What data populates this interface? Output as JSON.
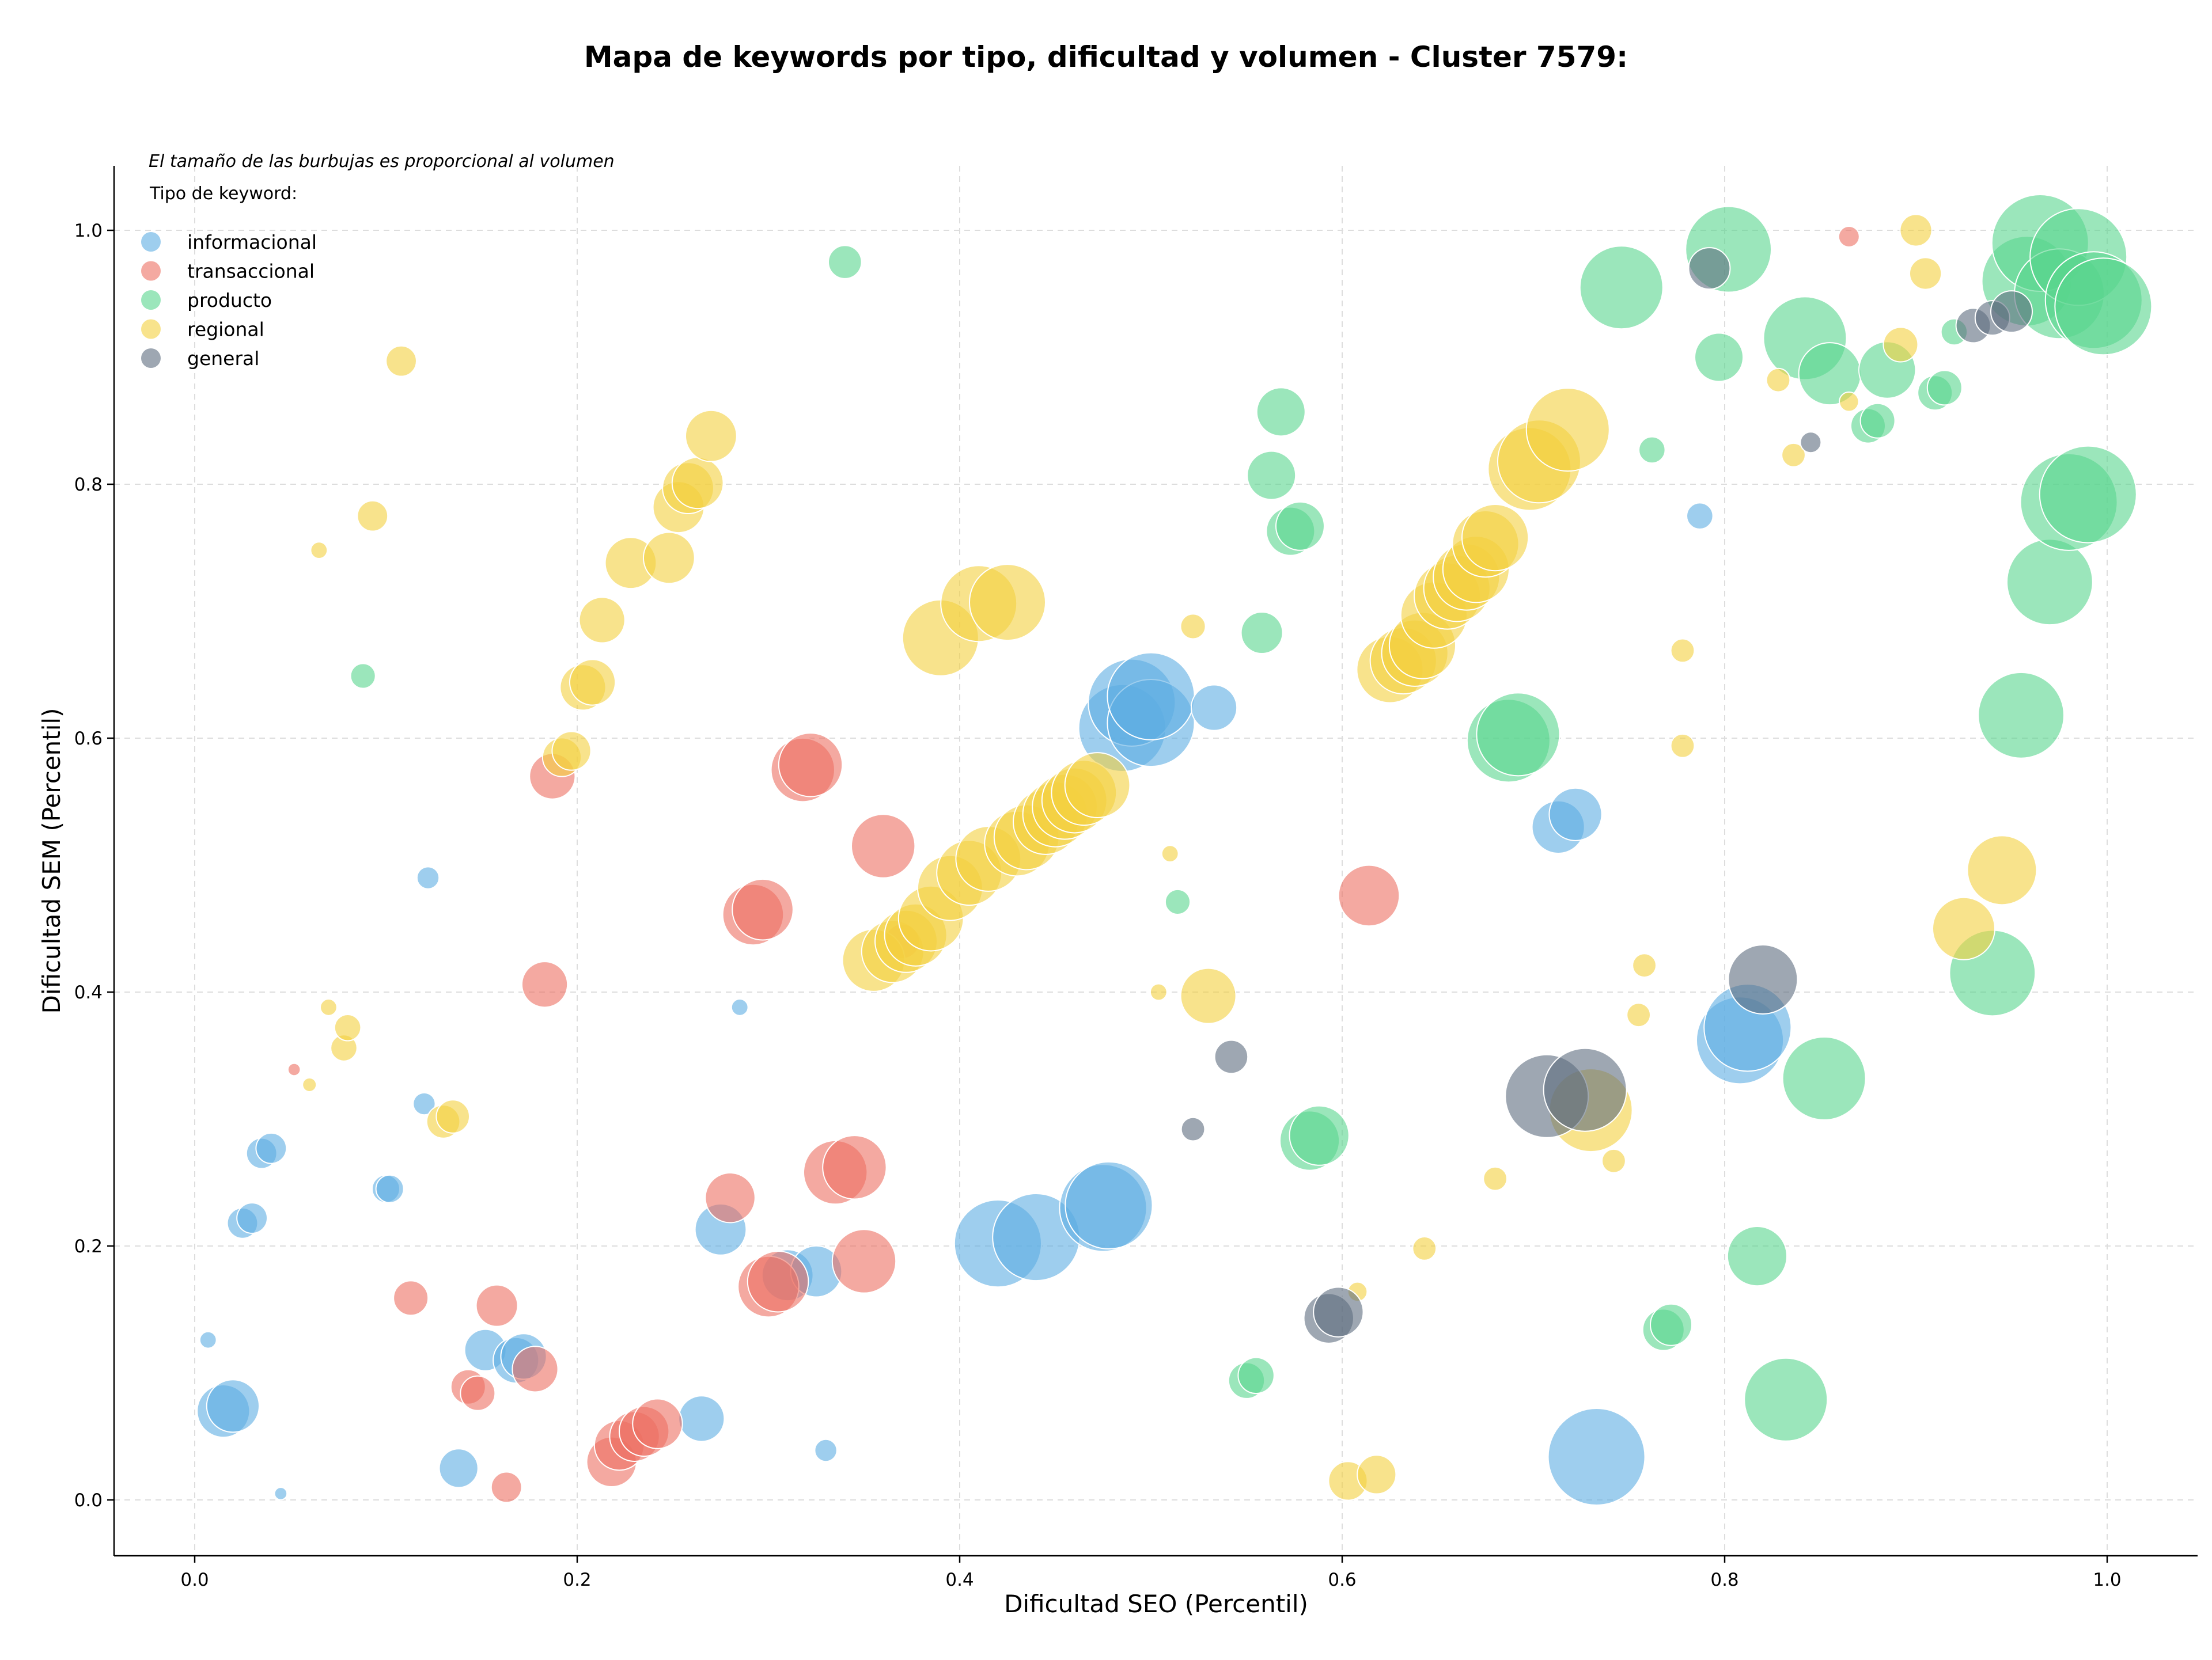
{
  "chart_data": {
    "type": "scatter",
    "title": "Mapa de keywords por tipo, dificultad y volumen - Cluster 7579:",
    "xlabel": "Dificultad SEO (Percentil)",
    "ylabel": "Dificultad SEM (Percentil)",
    "xlim": [
      -0.04,
      1.05
    ],
    "ylim": [
      -0.045,
      1.05
    ],
    "x_ticks": [
      "0.0",
      "0.2",
      "0.4",
      "0.6",
      "0.8",
      "1.0"
    ],
    "y_ticks": [
      "0.0",
      "0.2",
      "0.4",
      "0.6",
      "0.8",
      "1.0"
    ],
    "grid": true,
    "legend_position": "top-left",
    "size_note": "El tamaño de las burbujas es proporcional al volumen",
    "legend_title": "Tipo de keyword:",
    "series": [
      {
        "name": "informacional",
        "color": "#5dade2",
        "points": [
          [
            0.007,
            0.126,
            1.2
          ],
          [
            0.015,
            0.07,
            3.8
          ],
          [
            0.02,
            0.074,
            3.8
          ],
          [
            0.025,
            0.218,
            2.2
          ],
          [
            0.03,
            0.222,
            2.2
          ],
          [
            0.035,
            0.273,
            2.2
          ],
          [
            0.04,
            0.277,
            2.2
          ],
          [
            0.045,
            0.005,
            0.9
          ],
          [
            0.1,
            0.245,
            2.0
          ],
          [
            0.102,
            0.245,
            2.0
          ],
          [
            0.12,
            0.312,
            1.6
          ],
          [
            0.122,
            0.49,
            1.6
          ],
          [
            0.138,
            0.025,
            2.8
          ],
          [
            0.152,
            0.118,
            3.0
          ],
          [
            0.168,
            0.11,
            3.3
          ],
          [
            0.172,
            0.113,
            3.3
          ],
          [
            0.265,
            0.064,
            3.3
          ],
          [
            0.275,
            0.213,
            3.7
          ],
          [
            0.285,
            0.388,
            1.2
          ],
          [
            0.31,
            0.177,
            3.7
          ],
          [
            0.325,
            0.18,
            3.7
          ],
          [
            0.33,
            0.039,
            1.6
          ],
          [
            0.42,
            0.202,
            6.3
          ],
          [
            0.44,
            0.207,
            6.3
          ],
          [
            0.475,
            0.23,
            6.3
          ],
          [
            0.478,
            0.232,
            6.3
          ],
          [
            0.485,
            0.608,
            6.3
          ],
          [
            0.49,
            0.628,
            6.3
          ],
          [
            0.5,
            0.612,
            6.3
          ],
          [
            0.5,
            0.633,
            6.3
          ],
          [
            0.533,
            0.624,
            3.3
          ],
          [
            0.713,
            0.53,
            3.8
          ],
          [
            0.722,
            0.54,
            3.8
          ],
          [
            0.733,
            0.034,
            7.0
          ],
          [
            0.787,
            0.775,
            1.9
          ],
          [
            0.808,
            0.362,
            6.3
          ],
          [
            0.812,
            0.372,
            6.3
          ]
        ]
      },
      {
        "name": "transaccional",
        "color": "#ec7063",
        "points": [
          [
            0.052,
            0.339,
            0.9
          ],
          [
            0.113,
            0.159,
            2.5
          ],
          [
            0.143,
            0.089,
            2.5
          ],
          [
            0.148,
            0.084,
            2.5
          ],
          [
            0.158,
            0.153,
            3.0
          ],
          [
            0.163,
            0.01,
            2.2
          ],
          [
            0.178,
            0.103,
            3.3
          ],
          [
            0.183,
            0.406,
            3.3
          ],
          [
            0.187,
            0.57,
            3.3
          ],
          [
            0.218,
            0.03,
            3.6
          ],
          [
            0.222,
            0.043,
            3.6
          ],
          [
            0.23,
            0.05,
            3.6
          ],
          [
            0.235,
            0.054,
            3.6
          ],
          [
            0.242,
            0.06,
            3.6
          ],
          [
            0.28,
            0.238,
            3.6
          ],
          [
            0.292,
            0.461,
            4.4
          ],
          [
            0.297,
            0.465,
            4.4
          ],
          [
            0.3,
            0.168,
            4.4
          ],
          [
            0.305,
            0.172,
            4.4
          ],
          [
            0.318,
            0.575,
            4.6
          ],
          [
            0.322,
            0.579,
            4.6
          ],
          [
            0.335,
            0.258,
            4.6
          ],
          [
            0.345,
            0.262,
            4.6
          ],
          [
            0.35,
            0.188,
            4.6
          ],
          [
            0.36,
            0.515,
            4.6
          ],
          [
            0.37,
            0.44,
            2.5
          ],
          [
            0.614,
            0.476,
            4.4
          ],
          [
            0.865,
            0.995,
            1.5
          ]
        ]
      },
      {
        "name": "producto",
        "color": "#58d68d",
        "points": [
          [
            0.088,
            0.649,
            1.8
          ],
          [
            0.34,
            0.975,
            2.4
          ],
          [
            0.514,
            0.471,
            1.8
          ],
          [
            0.55,
            0.094,
            2.6
          ],
          [
            0.555,
            0.098,
            2.6
          ],
          [
            0.558,
            0.683,
            3.0
          ],
          [
            0.563,
            0.807,
            3.5
          ],
          [
            0.568,
            0.857,
            3.5
          ],
          [
            0.573,
            0.763,
            3.5
          ],
          [
            0.578,
            0.767,
            3.5
          ],
          [
            0.583,
            0.283,
            4.3
          ],
          [
            0.588,
            0.287,
            4.3
          ],
          [
            0.687,
            0.598,
            6.0
          ],
          [
            0.692,
            0.603,
            6.0
          ],
          [
            0.746,
            0.955,
            6.0
          ],
          [
            0.762,
            0.827,
            1.9
          ],
          [
            0.768,
            0.134,
            3.0
          ],
          [
            0.772,
            0.138,
            3.0
          ],
          [
            0.797,
            0.9,
            3.5
          ],
          [
            0.802,
            0.985,
            6.2
          ],
          [
            0.817,
            0.192,
            4.3
          ],
          [
            0.832,
            0.079,
            6.0
          ],
          [
            0.842,
            0.915,
            6.0
          ],
          [
            0.852,
            0.332,
            6.0
          ],
          [
            0.855,
            0.887,
            4.5
          ],
          [
            0.875,
            0.846,
            2.5
          ],
          [
            0.88,
            0.85,
            2.5
          ],
          [
            0.885,
            0.89,
            4.1
          ],
          [
            0.91,
            0.872,
            2.5
          ],
          [
            0.915,
            0.876,
            2.5
          ],
          [
            0.92,
            0.92,
            1.9
          ],
          [
            0.94,
            0.415,
            6.2
          ],
          [
            0.955,
            0.618,
            6.2
          ],
          [
            0.958,
            0.96,
            6.5
          ],
          [
            0.965,
            0.99,
            7.0
          ],
          [
            0.97,
            0.723,
            6.2
          ],
          [
            0.975,
            0.95,
            6.5
          ],
          [
            0.98,
            0.786,
            7.0
          ],
          [
            0.985,
            0.979,
            7.0
          ],
          [
            0.99,
            0.792,
            7.0
          ],
          [
            0.993,
            0.945,
            7.0
          ],
          [
            0.998,
            0.94,
            7.0
          ]
        ]
      },
      {
        "name": "regional",
        "color": "#f4d03f",
        "points": [
          [
            0.06,
            0.327,
            1.0
          ],
          [
            0.065,
            0.748,
            1.2
          ],
          [
            0.07,
            0.388,
            1.2
          ],
          [
            0.078,
            0.356,
            1.9
          ],
          [
            0.08,
            0.372,
            1.9
          ],
          [
            0.093,
            0.775,
            2.2
          ],
          [
            0.108,
            0.897,
            2.2
          ],
          [
            0.13,
            0.298,
            2.4
          ],
          [
            0.135,
            0.302,
            2.4
          ],
          [
            0.192,
            0.585,
            2.8
          ],
          [
            0.197,
            0.59,
            2.8
          ],
          [
            0.203,
            0.64,
            3.3
          ],
          [
            0.208,
            0.644,
            3.3
          ],
          [
            0.213,
            0.693,
            3.3
          ],
          [
            0.228,
            0.738,
            3.7
          ],
          [
            0.248,
            0.742,
            3.7
          ],
          [
            0.253,
            0.782,
            3.7
          ],
          [
            0.258,
            0.797,
            3.7
          ],
          [
            0.263,
            0.801,
            3.7
          ],
          [
            0.27,
            0.838,
            3.7
          ],
          [
            0.355,
            0.425,
            4.5
          ],
          [
            0.365,
            0.432,
            4.5
          ],
          [
            0.372,
            0.44,
            4.5
          ],
          [
            0.377,
            0.445,
            4.5
          ],
          [
            0.385,
            0.458,
            4.7
          ],
          [
            0.39,
            0.679,
            5.5
          ],
          [
            0.395,
            0.482,
            4.7
          ],
          [
            0.405,
            0.494,
            4.7
          ],
          [
            0.41,
            0.706,
            5.5
          ],
          [
            0.415,
            0.505,
            4.7
          ],
          [
            0.425,
            0.707,
            5.5
          ],
          [
            0.43,
            0.517,
            4.7
          ],
          [
            0.435,
            0.522,
            4.7
          ],
          [
            0.445,
            0.534,
            4.7
          ],
          [
            0.45,
            0.54,
            4.7
          ],
          [
            0.455,
            0.546,
            4.7
          ],
          [
            0.46,
            0.551,
            4.7
          ],
          [
            0.465,
            0.557,
            4.7
          ],
          [
            0.472,
            0.563,
            4.7
          ],
          [
            0.504,
            0.4,
            1.2
          ],
          [
            0.51,
            0.509,
            1.2
          ],
          [
            0.522,
            0.688,
            1.8
          ],
          [
            0.53,
            0.397,
            4.0
          ],
          [
            0.603,
            0.015,
            2.8
          ],
          [
            0.608,
            0.164,
            1.4
          ],
          [
            0.618,
            0.02,
            2.8
          ],
          [
            0.625,
            0.654,
            4.8
          ],
          [
            0.632,
            0.661,
            4.8
          ],
          [
            0.638,
            0.667,
            4.8
          ],
          [
            0.642,
            0.673,
            4.8
          ],
          [
            0.648,
            0.697,
            4.8
          ],
          [
            0.655,
            0.712,
            4.8
          ],
          [
            0.66,
            0.718,
            4.8
          ],
          [
            0.665,
            0.727,
            4.8
          ],
          [
            0.67,
            0.733,
            4.8
          ],
          [
            0.675,
            0.753,
            4.8
          ],
          [
            0.68,
            0.758,
            4.8
          ],
          [
            0.643,
            0.198,
            1.7
          ],
          [
            0.68,
            0.253,
            1.7
          ],
          [
            0.698,
            0.812,
            6.0
          ],
          [
            0.703,
            0.818,
            6.0
          ],
          [
            0.718,
            0.843,
            6.0
          ],
          [
            0.73,
            0.307,
            6.0
          ],
          [
            0.742,
            0.267,
            1.7
          ],
          [
            0.755,
            0.382,
            1.7
          ],
          [
            0.758,
            0.421,
            1.7
          ],
          [
            0.778,
            0.594,
            1.7
          ],
          [
            0.778,
            0.669,
            1.7
          ],
          [
            0.828,
            0.882,
            1.7
          ],
          [
            0.836,
            0.823,
            1.7
          ],
          [
            0.865,
            0.865,
            1.4
          ],
          [
            0.892,
            0.91,
            2.5
          ],
          [
            0.9,
            1.0,
            2.3
          ],
          [
            0.905,
            0.966,
            2.3
          ],
          [
            0.925,
            0.45,
            4.5
          ],
          [
            0.945,
            0.496,
            5.0
          ]
        ]
      },
      {
        "name": "general",
        "color": "#5d6d7e",
        "points": [
          [
            0.522,
            0.292,
            1.7
          ],
          [
            0.542,
            0.349,
            2.4
          ],
          [
            0.593,
            0.143,
            3.6
          ],
          [
            0.598,
            0.148,
            3.6
          ],
          [
            0.707,
            0.318,
            6.0
          ],
          [
            0.727,
            0.323,
            6.0
          ],
          [
            0.792,
            0.97,
            3.0
          ],
          [
            0.82,
            0.41,
            5.0
          ],
          [
            0.845,
            0.833,
            1.5
          ],
          [
            0.93,
            0.925,
            2.5
          ],
          [
            0.94,
            0.931,
            2.5
          ],
          [
            0.95,
            0.936,
            3.0
          ]
        ]
      }
    ]
  }
}
